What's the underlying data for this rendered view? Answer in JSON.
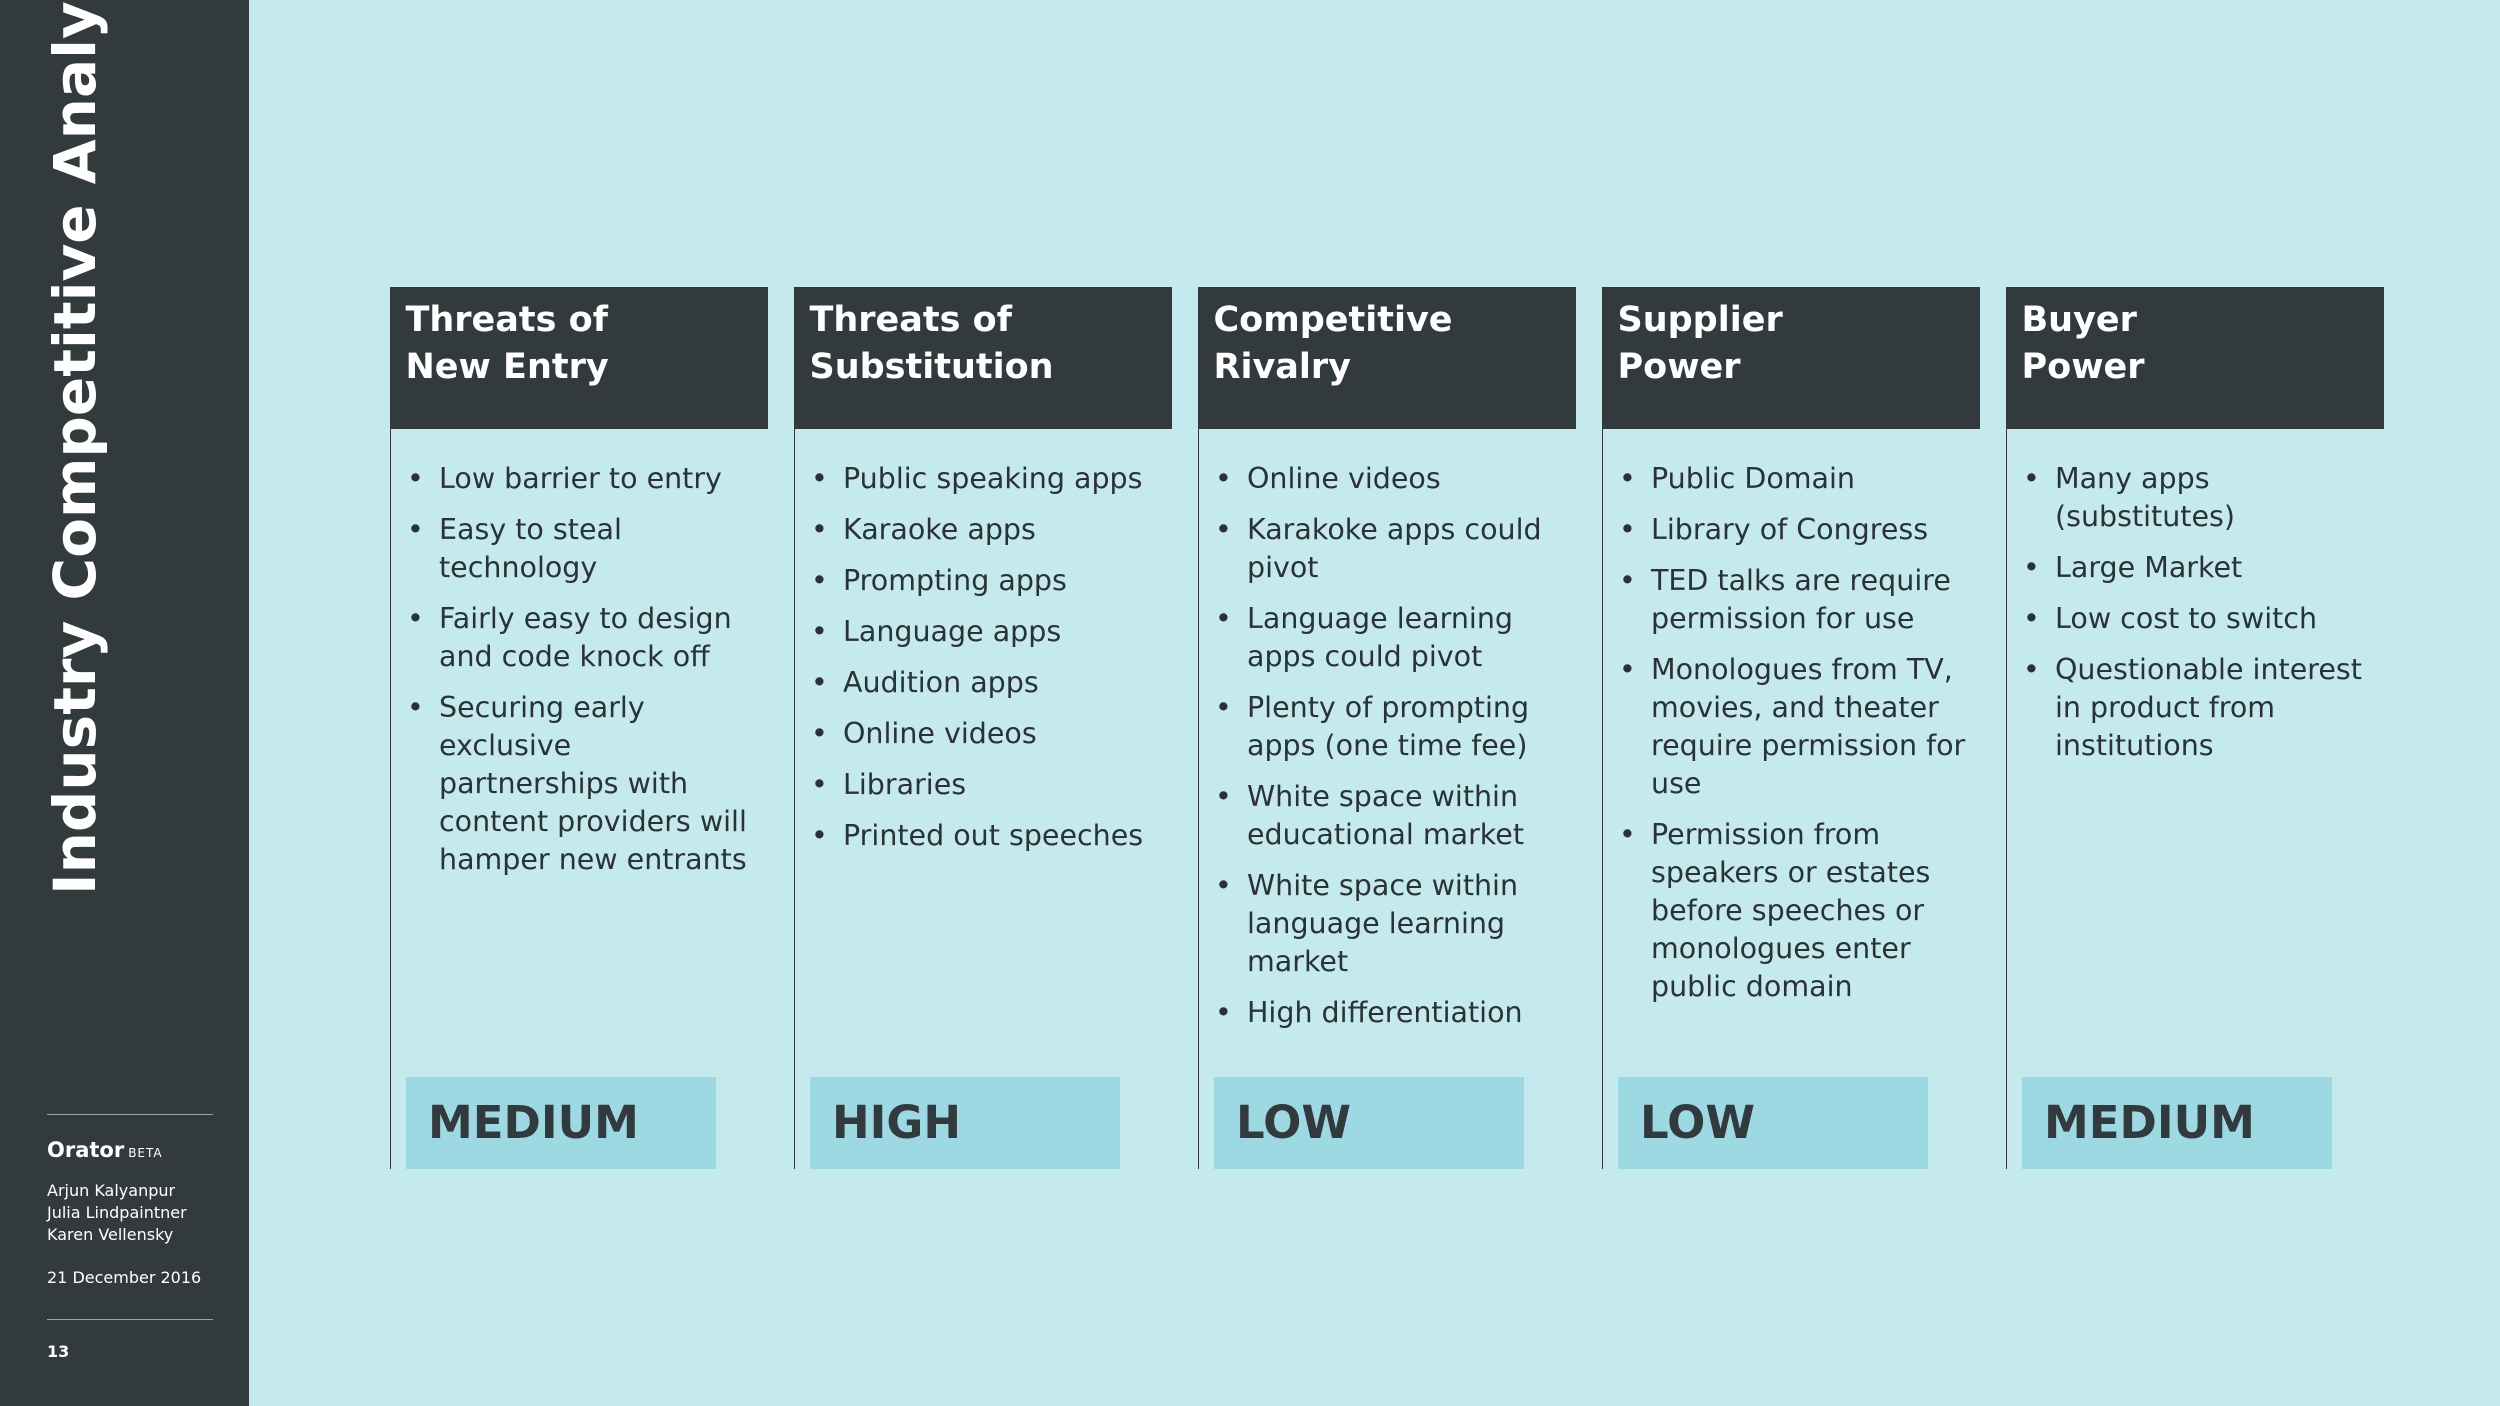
{
  "sidebar": {
    "title": "Industry Competitive Analysis",
    "brand": "Orator",
    "brand_tag": "BETA",
    "authors": [
      "Arjun Kalyanpur",
      "Julia Lindpaintner",
      "Karen Vellensky"
    ],
    "date": "21 December 2016",
    "page_number": "13"
  },
  "columns": [
    {
      "title_lines": [
        "Threats of",
        "New Entry"
      ],
      "bullets": [
        "Low barrier to entry",
        "Easy to steal technology",
        "Fairly easy to design and code knock off",
        "Securing early exclusive partnerships with content providers will hamper new entrants"
      ],
      "rating": "MEDIUM"
    },
    {
      "title_lines": [
        "Threats of",
        "Substitution"
      ],
      "bullets": [
        "Public speaking apps",
        "Karaoke apps",
        "Prompting apps",
        "Language apps",
        "Audition apps",
        "Online videos",
        "Libraries",
        "Printed out speeches"
      ],
      "rating": "HIGH"
    },
    {
      "title_lines": [
        "Competitive",
        "Rivalry"
      ],
      "bullets": [
        "Online videos",
        "Karakoke apps could pivot",
        "Language learning apps could pivot",
        "Plenty of prompting apps (one time fee)",
        "White space within educational market",
        "White space within language learning market",
        "High differentiation"
      ],
      "rating": "LOW"
    },
    {
      "title_lines": [
        "Supplier",
        "Power"
      ],
      "bullets": [
        "Public Domain",
        "Library of Congress",
        "TED talks are require permission for use",
        "Monologues from TV, movies, and theater require permission for use",
        "Permission from speakers or estates before speeches or monologues enter public domain"
      ],
      "rating": "LOW"
    },
    {
      "title_lines": [
        "Buyer",
        "Power"
      ],
      "bullets": [
        "Many apps (substitutes)",
        "Large Market",
        "Low cost to switch",
        "Questionable interest in product from institutions"
      ],
      "rating": "MEDIUM"
    }
  ]
}
